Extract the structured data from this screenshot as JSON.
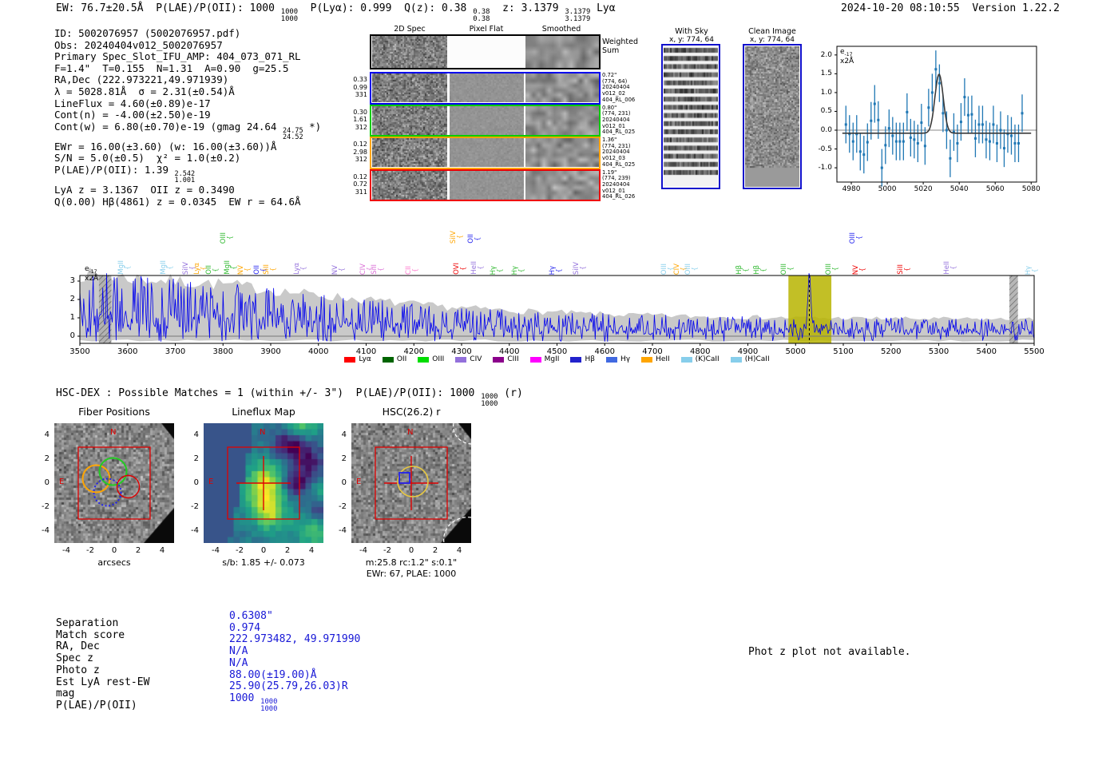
{
  "header": {
    "left_rich": "EW: 76.7±20.5Å  P(LAE)/P(OII): 1000 ⟦1000|1000⟧  P(Lyα): 0.999  Q(z): 0.38 ⟦0.38|0.38⟧  z: 3.1379 ⟦3.1379|3.1379⟧ Lyα",
    "right": "2024-10-20 08:10:55  Version 1.22.2"
  },
  "info_lines": [
    "ID: 5002076957 (5002076957.pdf)",
    "Obs: 20240404v012_5002076957",
    "Primary Spec_Slot_IFU_AMP: 404_073_071_RL",
    "F=1.4\"  T=0.155  N=1.31  A=0.90  g=25.5",
    "RA,Dec (222.973221,49.971939)",
    "λ = 5028.81Å  σ = 2.31(±0.54)Å",
    "LineFlux = 4.60(±0.89)e-17",
    "Cont(n) = -4.00(±2.50)e-19",
    "Cont(w) = 6.80(±0.70)e-19 (gmag 24.64 ⟦24.75|24.52⟧ *)",
    "EWr = 16.00(±3.60) (w: 16.00(±3.60))Å",
    "S/N = 5.0(±0.5)  χ² = 1.0(±0.2)",
    "P(LAE)/P(OII): 1.39 ⟦2.542|1.001⟧",
    "LyA z = 3.1367  OII z = 0.3490",
    "Q(0.00) Hβ(4861) z = 0.0345  EW r = 64.6Å"
  ],
  "spec2d": {
    "col_headers": [
      "2D Spec",
      "Pixel Flat",
      "Smoothed"
    ],
    "weighted_label": [
      "Weighted",
      "Sum"
    ],
    "rows": [
      {
        "color": "#0000ee",
        "left": [
          "0.33",
          "0.99",
          "331"
        ],
        "right": [
          "0.72\"",
          "(774, 64)",
          "20240404",
          "v012_02",
          "404_RL_006"
        ]
      },
      {
        "color": "#00cc00",
        "left": [
          "0.30",
          "1.61",
          "312"
        ],
        "right": [
          "0.80\"",
          "(774, 231)",
          "20240404",
          "v012_01",
          "404_RL_025"
        ]
      },
      {
        "color": "#ffa500",
        "left": [
          "0.12",
          "2.98",
          "312"
        ],
        "right": [
          "1.36\"",
          "(774, 231)",
          "20240404",
          "v012_03",
          "404_RL_025"
        ]
      },
      {
        "color": "#ee0000",
        "left": [
          "0.12",
          "0.72",
          "311"
        ],
        "right": [
          "1.19\"",
          "(774, 239)",
          "20240404",
          "v012_01",
          "404_RL_026"
        ]
      }
    ]
  },
  "sky_panels": [
    {
      "title": "With Sky",
      "coords": "x, y: 774, 64"
    },
    {
      "title": "Clean Image",
      "coords": "x, y: 774, 64"
    }
  ],
  "hsc_line_rich": "HSC-DEX : Possible Matches = 1 (within +/- 3\")  P(LAE)/P(OII): 1000 ⟦1000|1000⟧ (r)",
  "photz_note": "Phot z plot not available.",
  "match_table": {
    "value_color": "#1717d6",
    "rows": [
      {
        "label": "Separation",
        "value_rich": "0.6308\""
      },
      {
        "label": "Match score",
        "value_rich": "0.974"
      },
      {
        "label": "RA, Dec",
        "value_rich": "222.973482, 49.971990"
      },
      {
        "label": "Spec z",
        "value_rich": "N/A"
      },
      {
        "label": "Photo z",
        "value_rich": "N/A"
      },
      {
        "label": "Est LyA rest-EW",
        "value_rich": "88.00(±19.00)Å"
      },
      {
        "label": "mag",
        "value_rich": "25.90(25.79,26.03)R"
      },
      {
        "label": "P(LAE)/P(OII)",
        "value_rich": "1000 ⟦1000|1000⟧"
      }
    ]
  },
  "cutouts": [
    {
      "title": "Fiber Positions",
      "caption": "arcsecs",
      "caption2": "",
      "x_ticks": [
        "-4",
        "-2",
        "0",
        "2",
        "4"
      ],
      "y_ticks": [
        "4",
        "2",
        "0",
        "-2",
        "-4"
      ],
      "north": "N",
      "east": "E"
    },
    {
      "title": "Lineflux Map",
      "caption": "s/b: 1.85 +/- 0.073",
      "caption2": "",
      "x_ticks": [
        "-4",
        "-2",
        "0",
        "2",
        "4"
      ],
      "y_ticks": [
        "4",
        "2",
        "0",
        "-2",
        "-4"
      ],
      "north": "N",
      "east": "E"
    },
    {
      "title": "HSC(26.2) r",
      "caption": "m:25.8 rc:1.2\"  s:0.1\"",
      "caption2": "EWr: 67, PLAE: 1000",
      "x_ticks": [
        "-4",
        "-2",
        "0",
        "2",
        "4"
      ],
      "y_ticks": [
        "4",
        "2",
        "0",
        "-2",
        "-4"
      ],
      "north": "N",
      "east": "E"
    }
  ],
  "chart_data": [
    {
      "id": "zoom_spectrum",
      "type": "scatter",
      "annotation_rich": "e⟦-17|⟧x2Å",
      "x_ticks": [
        4980,
        5000,
        5020,
        5040,
        5060,
        5080
      ],
      "y_ticks": [
        "2.0",
        "1.5",
        "1.0",
        "0.5",
        "0.0",
        "-0.5",
        "-1.0"
      ],
      "y_tick_vals": [
        2.0,
        1.5,
        1.0,
        0.5,
        0.0,
        -0.5,
        -1.0
      ],
      "xlim": [
        4972,
        5083
      ],
      "ylim": [
        -1.38,
        2.23
      ],
      "marker_color": "#1f77b4",
      "fit_color": "#3a3a3a",
      "yerr": 0.5,
      "x": [
        4977,
        4979,
        4981,
        4983,
        4985,
        4987,
        4989,
        4991,
        4993,
        4995,
        4997,
        4999,
        5001,
        5003,
        5005,
        5007,
        5009,
        5011,
        5013,
        5015,
        5017,
        5019,
        5021,
        5023,
        5025,
        5027,
        5029,
        5031,
        5033,
        5035,
        5037,
        5039,
        5041,
        5043,
        5045,
        5047,
        5049,
        5051,
        5053,
        5055,
        5057,
        5059,
        5061,
        5063,
        5065,
        5067,
        5069,
        5071,
        5073,
        5075
      ],
      "y": [
        0.15,
        -0.1,
        -0.3,
        -0.1,
        -0.57,
        -0.65,
        -0.32,
        0.25,
        0.7,
        0.27,
        -1.0,
        -0.4,
        0.05,
        -0.15,
        -0.3,
        -0.3,
        -0.3,
        0.48,
        -0.2,
        -0.25,
        -0.35,
        0.2,
        -0.42,
        0.6,
        1.0,
        1.62,
        1.25,
        0.45,
        0.0,
        -0.75,
        -0.05,
        -0.35,
        0.22,
        0.88,
        0.4,
        0.42,
        -0.22,
        0.15,
        0.15,
        -0.25,
        -0.3,
        0.15,
        -0.35,
        0.0,
        -0.48,
        -0.1,
        -0.15,
        -0.35,
        -0.35,
        0.45
      ],
      "fit": {
        "type": "gaussian",
        "center": 5028.8,
        "sigma": 2.31,
        "amplitude": 1.57,
        "baseline": -0.08
      }
    },
    {
      "id": "main_spectrum",
      "type": "line",
      "annotation_rich": "e⟦-17|⟧x2Å",
      "xlim": [
        3500,
        5500
      ],
      "x_tick_step": 100,
      "y_ticks": [
        0,
        1,
        2,
        3
      ],
      "line_color": "#0000ee",
      "fill_color": "#c6c6c6",
      "noise_envelope": [
        [
          3500,
          3.35
        ],
        [
          3650,
          3.05
        ],
        [
          3800,
          2.8
        ],
        [
          3950,
          2.35
        ],
        [
          4100,
          1.95
        ],
        [
          4250,
          1.6
        ],
        [
          4400,
          1.38
        ],
        [
          4600,
          1.18
        ],
        [
          4800,
          1.06
        ],
        [
          5000,
          0.99
        ],
        [
          5200,
          0.95
        ],
        [
          5500,
          0.9
        ]
      ],
      "emission_peak": {
        "wavelength": 5028.8,
        "amplitude": 3.05,
        "sigma": 3.2
      },
      "highlight_band": {
        "x0": 4985,
        "x1": 5075,
        "color": "#b7b400",
        "marker_line": 5028.8
      },
      "hatch_bands": [
        [
          3540,
          3566
        ],
        [
          5448,
          5466
        ]
      ],
      "legend": [
        {
          "label": "Lyα",
          "color": "#ff0000"
        },
        {
          "label": "OII",
          "color": "#006400"
        },
        {
          "label": "OIII",
          "color": "#00dd00"
        },
        {
          "label": "CIV",
          "color": "#9370db"
        },
        {
          "label": "CIII",
          "color": "#8b008b"
        },
        {
          "label": "MgII",
          "color": "#ff00ff"
        },
        {
          "label": "Hβ",
          "color": "#2222cc"
        },
        {
          "label": "Hγ",
          "color": "#4169e1"
        },
        {
          "label": "HeII",
          "color": "#ffa500"
        },
        {
          "label": "(K)CaII",
          "color": "#87ceeb"
        },
        {
          "label": "(H)CaII",
          "color": "#87ceeb"
        }
      ],
      "line_labels": [
        {
          "wl": 3587,
          "label": "MgII",
          "color": "#87ceeb",
          "tier": 0
        },
        {
          "wl": 3676,
          "label": "MgII",
          "color": "#87ceeb",
          "tier": 0
        },
        {
          "wl": 3723,
          "label": "SiIV",
          "color": "#9370db",
          "tier": 0
        },
        {
          "wl": 3746,
          "label": "Lyα",
          "color": "#ffa500",
          "tier": 0
        },
        {
          "wl": 3771,
          "label": "OII",
          "color": "#2db82d",
          "tier": 0
        },
        {
          "wl": 3801,
          "label": "OIII",
          "color": "#2db82d",
          "tier": 1
        },
        {
          "wl": 3810,
          "label": "MgII",
          "color": "#2db82d",
          "tier": 0
        },
        {
          "wl": 3838,
          "label": "NV",
          "color": "#ffa500",
          "tier": 0
        },
        {
          "wl": 3872,
          "label": "OII",
          "color": "#2222ee",
          "tier": 0
        },
        {
          "wl": 3892,
          "label": "SiII",
          "color": "#ffa500",
          "tier": 0
        },
        {
          "wl": 3955,
          "label": "Lyα",
          "color": "#9370db",
          "tier": 0
        },
        {
          "wl": 4036,
          "label": "NV",
          "color": "#9370db",
          "tier": 0
        },
        {
          "wl": 4094,
          "label": "CIV",
          "color": "#da70d6",
          "tier": 0
        },
        {
          "wl": 4118,
          "label": "SiII",
          "color": "#da70d6",
          "tier": 0
        },
        {
          "wl": 4190,
          "label": "CII",
          "color": "#ff77cc",
          "tier": 0
        },
        {
          "wl": 4283,
          "label": "SiIV",
          "color": "#ffa500",
          "tier": 1
        },
        {
          "wl": 4290,
          "label": "OVI",
          "color": "#ee0000",
          "tier": 0
        },
        {
          "wl": 4320,
          "label": "OII",
          "color": "#2222ee",
          "tier": 1
        },
        {
          "wl": 4326,
          "label": "HeII",
          "color": "#9370db",
          "tier": 0
        },
        {
          "wl": 4367,
          "label": "Hγ",
          "color": "#2db82d",
          "tier": 0
        },
        {
          "wl": 4412,
          "label": "Hγ",
          "color": "#2db82d",
          "tier": 0
        },
        {
          "wl": 4491,
          "label": "Hγ",
          "color": "#2222ee",
          "tier": 0
        },
        {
          "wl": 4541,
          "label": "SiIV",
          "color": "#9370db",
          "tier": 0
        },
        {
          "wl": 4725,
          "label": "OIII",
          "color": "#87ceeb",
          "tier": 0
        },
        {
          "wl": 4752,
          "label": "CIV",
          "color": "#ffa500",
          "tier": 0
        },
        {
          "wl": 4775,
          "label": "OIII",
          "color": "#87ceeb",
          "tier": 0
        },
        {
          "wl": 4882,
          "label": "Hβ",
          "color": "#2db82d",
          "tier": 0
        },
        {
          "wl": 4919,
          "label": "Hβ",
          "color": "#2db82d",
          "tier": 0
        },
        {
          "wl": 4976,
          "label": "OIII",
          "color": "#2db82d",
          "tier": 0
        },
        {
          "wl": 5070,
          "label": "OIII",
          "color": "#2db82d",
          "tier": 0
        },
        {
          "wl": 5120,
          "label": "OIII",
          "color": "#2222ee",
          "tier": 1
        },
        {
          "wl": 5127,
          "label": "NV",
          "color": "#ee0000",
          "tier": 0
        },
        {
          "wl": 5220,
          "label": "SiII",
          "color": "#ee0000",
          "tier": 0
        },
        {
          "wl": 5317,
          "label": "HeII",
          "color": "#9370db",
          "tier": 0
        },
        {
          "wl": 5488,
          "label": "Hγ",
          "color": "#87ceeb",
          "tier": 0
        }
      ]
    }
  ]
}
